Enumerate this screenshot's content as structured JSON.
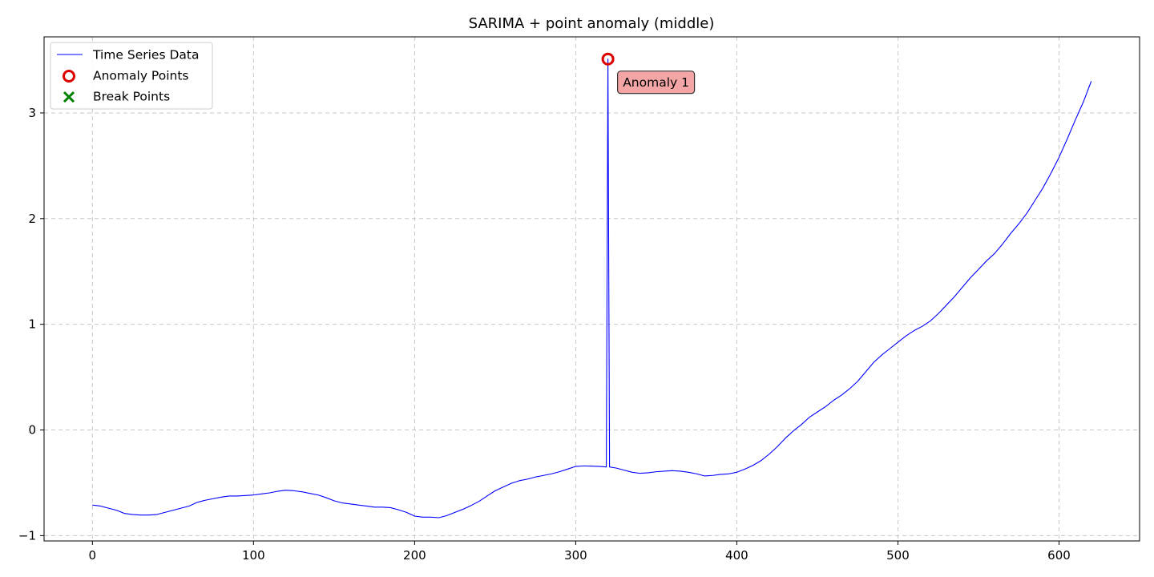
{
  "chart_data": {
    "type": "line",
    "title": "SARIMA + point anomaly (middle)",
    "xlabel": "",
    "ylabel": "",
    "xlim": [
      -30,
      650
    ],
    "ylim": [
      -1.05,
      3.72
    ],
    "x_ticks": [
      0,
      100,
      200,
      300,
      400,
      500,
      600
    ],
    "y_ticks": [
      -1,
      0,
      1,
      2,
      3
    ],
    "x_tick_labels": [
      "0",
      "100",
      "200",
      "300",
      "400",
      "500",
      "600"
    ],
    "y_tick_labels": [
      "−1",
      "0",
      "1",
      "2",
      "3"
    ],
    "grid": true,
    "legend_position": "top-left",
    "legend": {
      "series_label": "Time Series Data",
      "anomaly_label": "Anomaly Points",
      "break_label": "Break Points"
    },
    "colors": {
      "series": "#0000ff",
      "anomaly": "#dd0000",
      "break": "#008000",
      "annotation_fill": "#f4a6a6",
      "annotation_border": "#333333"
    },
    "series": [
      {
        "name": "Time Series Data",
        "x": [
          0,
          5,
          10,
          15,
          20,
          25,
          30,
          35,
          40,
          45,
          50,
          55,
          60,
          65,
          70,
          75,
          80,
          85,
          90,
          95,
          100,
          105,
          110,
          115,
          120,
          125,
          130,
          135,
          140,
          145,
          150,
          155,
          160,
          165,
          170,
          175,
          180,
          185,
          190,
          195,
          200,
          205,
          210,
          215,
          220,
          225,
          230,
          235,
          240,
          245,
          250,
          255,
          260,
          265,
          270,
          275,
          280,
          285,
          290,
          295,
          300,
          305,
          310,
          315,
          319,
          320,
          321,
          325,
          330,
          335,
          340,
          345,
          350,
          355,
          360,
          365,
          370,
          375,
          380,
          385,
          390,
          395,
          400,
          405,
          410,
          415,
          420,
          425,
          430,
          435,
          440,
          445,
          450,
          455,
          460,
          465,
          470,
          475,
          480,
          485,
          490,
          495,
          500,
          505,
          510,
          515,
          520,
          525,
          530,
          535,
          540,
          545,
          550,
          555,
          560,
          565,
          570,
          575,
          580,
          585,
          590,
          595,
          600,
          605,
          610,
          615,
          620
        ],
        "values": [
          -0.71,
          -0.72,
          -0.74,
          -0.76,
          -0.79,
          -0.8,
          -0.805,
          -0.805,
          -0.8,
          -0.78,
          -0.76,
          -0.74,
          -0.72,
          -0.685,
          -0.665,
          -0.65,
          -0.635,
          -0.625,
          -0.625,
          -0.62,
          -0.615,
          -0.605,
          -0.595,
          -0.58,
          -0.57,
          -0.575,
          -0.585,
          -0.6,
          -0.615,
          -0.64,
          -0.67,
          -0.69,
          -0.7,
          -0.71,
          -0.72,
          -0.73,
          -0.73,
          -0.735,
          -0.755,
          -0.78,
          -0.815,
          -0.825,
          -0.825,
          -0.83,
          -0.81,
          -0.78,
          -0.75,
          -0.715,
          -0.675,
          -0.625,
          -0.575,
          -0.54,
          -0.505,
          -0.48,
          -0.465,
          -0.445,
          -0.43,
          -0.415,
          -0.395,
          -0.37,
          -0.345,
          -0.34,
          -0.342,
          -0.345,
          -0.35,
          3.51,
          -0.35,
          -0.36,
          -0.38,
          -0.4,
          -0.41,
          -0.405,
          -0.395,
          -0.39,
          -0.385,
          -0.39,
          -0.4,
          -0.415,
          -0.435,
          -0.43,
          -0.42,
          -0.415,
          -0.4,
          -0.37,
          -0.335,
          -0.29,
          -0.23,
          -0.16,
          -0.08,
          -0.01,
          0.05,
          0.12,
          0.17,
          0.22,
          0.28,
          0.33,
          0.39,
          0.46,
          0.55,
          0.64,
          0.71,
          0.77,
          0.83,
          0.89,
          0.94,
          0.98,
          1.03,
          1.1,
          1.18,
          1.26,
          1.35,
          1.44,
          1.52,
          1.6,
          1.67,
          1.76,
          1.86,
          1.95,
          2.05,
          2.17,
          2.29,
          2.43,
          2.58,
          2.75,
          2.93,
          3.1,
          3.3
        ]
      }
    ],
    "anomaly_points": [
      {
        "x": 320,
        "y": 3.51,
        "label": "Anomaly 1"
      }
    ],
    "break_points": []
  }
}
